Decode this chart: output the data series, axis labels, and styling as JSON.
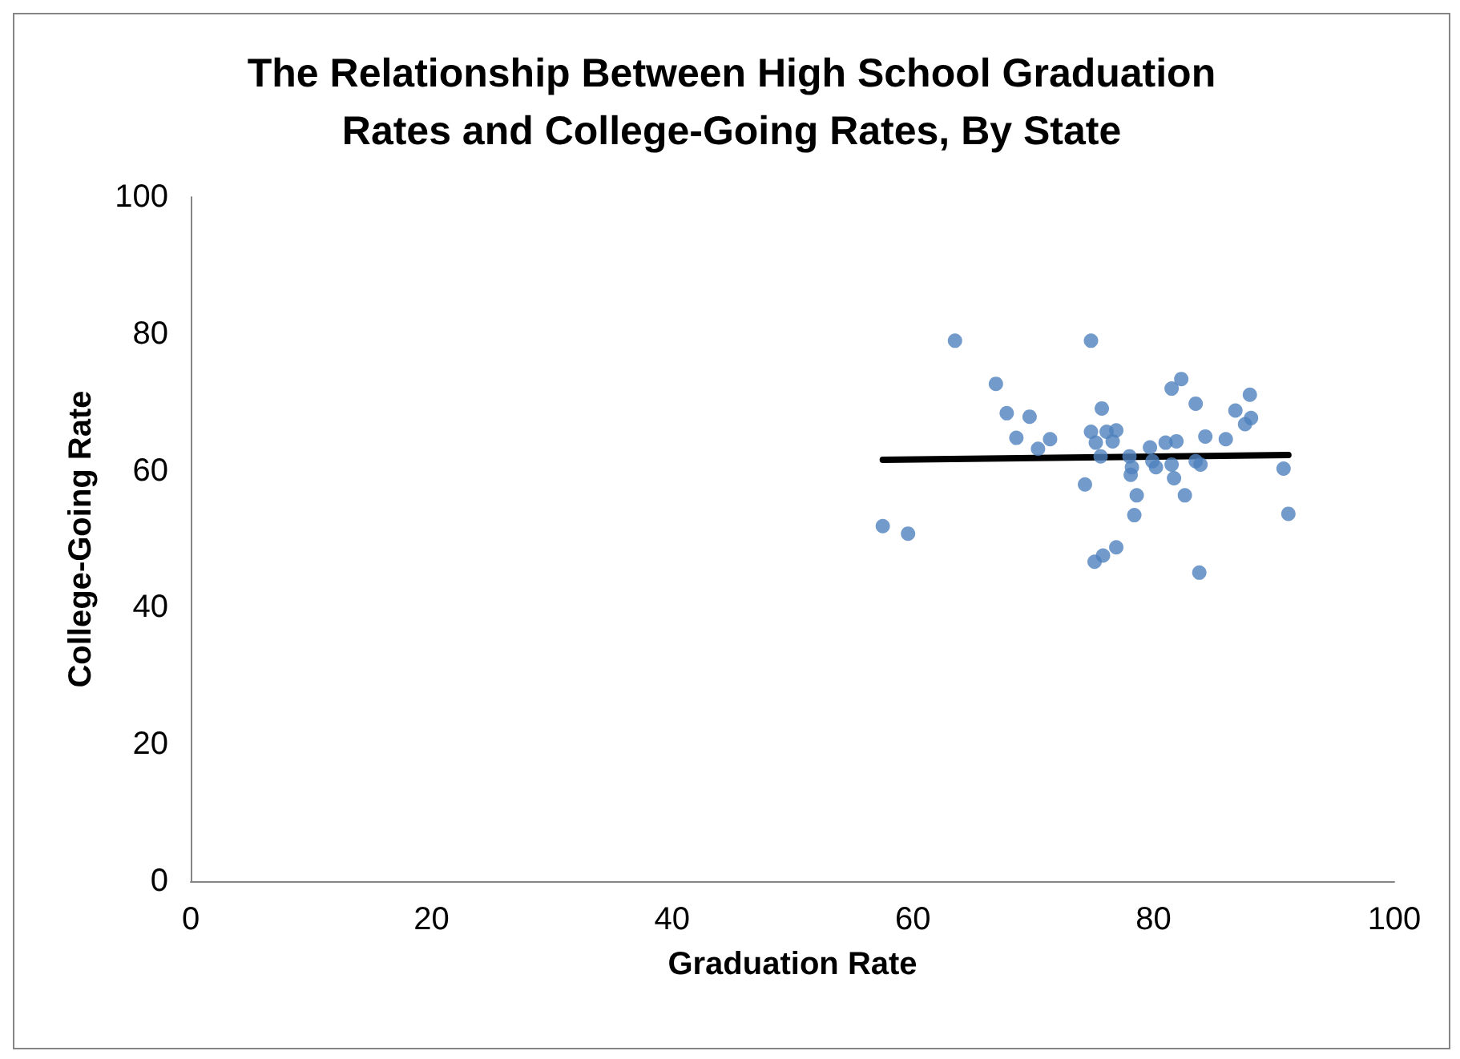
{
  "chart_data": {
    "type": "scatter",
    "title": "The Relationship Between High School Graduation\nRates and College-Going Rates, By State",
    "xlabel": "Graduation Rate",
    "ylabel": "College-Going Rate",
    "xlim": [
      0,
      100
    ],
    "xticks": [
      0,
      20,
      40,
      60,
      80,
      100
    ],
    "ylim": [
      0,
      100
    ],
    "yticks": [
      0,
      20,
      40,
      60,
      80,
      100
    ],
    "grid": false,
    "marker": "circle",
    "series": [
      {
        "color": "#4f81bd",
        "x": [
          57.5,
          59.6,
          63.5,
          66.9,
          67.8,
          69.7,
          68.6,
          71.4,
          70.4,
          74.8,
          74.3,
          75.1,
          75.8,
          76.9,
          75.7,
          74.8,
          75.2,
          75.6,
          76.1,
          76.9,
          76.6,
          78.0,
          78.2,
          78.1,
          78.6,
          78.4,
          79.7,
          79.9,
          80.2,
          81.0,
          81.9,
          81.5,
          82.3,
          83.5,
          81.5,
          81.7,
          82.6,
          83.5,
          83.9,
          83.8,
          84.3,
          86.0,
          86.8,
          88.0,
          88.1,
          87.6,
          90.8,
          91.2
        ],
        "values": [
          51.9,
          50.8,
          79.0,
          72.7,
          68.4,
          67.9,
          64.8,
          64.6,
          63.2,
          79.0,
          58.0,
          46.7,
          47.6,
          48.8,
          69.1,
          65.7,
          64.1,
          62.1,
          65.7,
          65.9,
          64.3,
          62.1,
          60.5,
          59.4,
          56.4,
          53.5,
          63.4,
          61.4,
          60.5,
          64.1,
          64.3,
          72.0,
          73.4,
          69.8,
          60.9,
          58.9,
          56.4,
          61.4,
          60.9,
          45.1,
          65.0,
          64.6,
          68.8,
          71.1,
          67.7,
          66.8,
          60.3,
          53.7
        ]
      },
      {
        "type": "line",
        "color": "#000000",
        "marker": "none",
        "line_style": "solid",
        "x": [
          57.5,
          91.2
        ],
        "values": [
          61.6,
          62.3
        ]
      }
    ]
  }
}
